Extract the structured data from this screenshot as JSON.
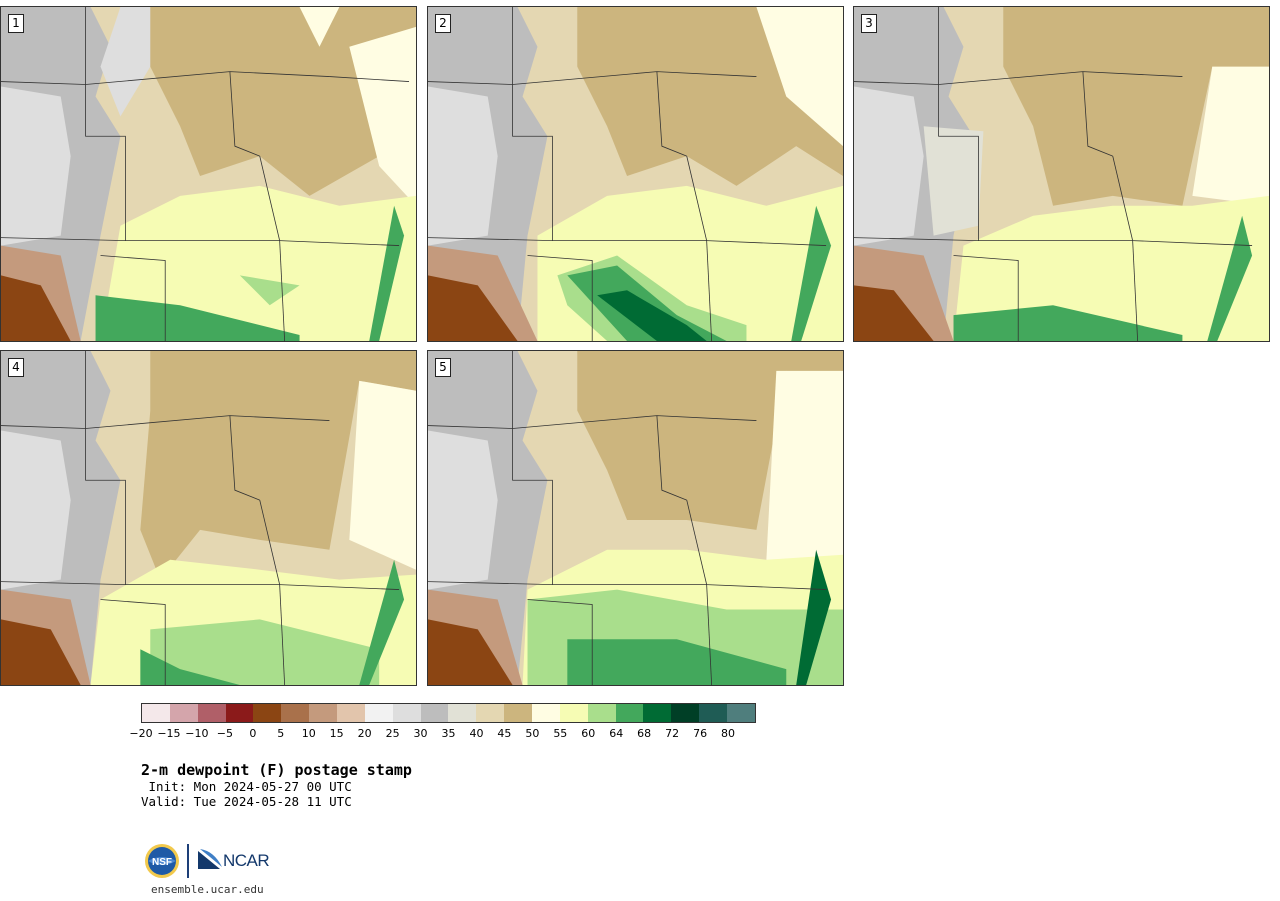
{
  "panels": [
    {
      "label": "1"
    },
    {
      "label": "2"
    },
    {
      "label": "3"
    },
    {
      "label": "4"
    },
    {
      "label": "5"
    }
  ],
  "colorbar": {
    "colors": [
      "#f4e8ea",
      "#d4a5ab",
      "#b05f68",
      "#8b1a1a",
      "#8b4513",
      "#a9714b",
      "#c49a7d",
      "#e2c5ac",
      "#f2f2f2",
      "#dedede",
      "#bdbdbd",
      "#e1e1d6",
      "#e4d7b2",
      "#ccb57e",
      "#fffde3",
      "#f6fcb4",
      "#a9de8c",
      "#43a85c",
      "#006b34",
      "#003f26",
      "#1f5c55",
      "#4f7e7d"
    ],
    "tick_labels": [
      "−20",
      "−15",
      "−10",
      "−5",
      "0",
      "5",
      "10",
      "15",
      "20",
      "25",
      "30",
      "35",
      "40",
      "45",
      "50",
      "55",
      "60",
      "64",
      "68",
      "72",
      "76",
      "80"
    ]
  },
  "title": "2-m dewpoint (F) postage stamp",
  "init": " Init: Mon 2024-05-27 00 UTC",
  "valid": "Valid: Tue 2024-05-28 11 UTC",
  "logos": {
    "nsf": "NSF",
    "ncar": "NCAR"
  },
  "url": "ensemble.ucar.edu"
}
